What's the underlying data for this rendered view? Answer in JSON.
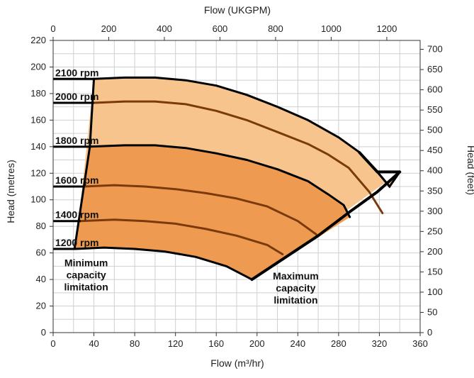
{
  "chart_data": {
    "type": "line",
    "x_bottom": {
      "label": "Flow (m³/hr)",
      "lim": [
        0,
        360
      ],
      "ticks": [
        0,
        40,
        80,
        120,
        160,
        200,
        240,
        280,
        320,
        360
      ]
    },
    "x_top": {
      "label": "Flow (UKGPM)",
      "lim": [
        0,
        1320
      ],
      "ticks": [
        0,
        200,
        400,
        600,
        800,
        1000,
        1200
      ]
    },
    "y_left": {
      "label": "Head (metres)",
      "lim": [
        0,
        220
      ],
      "ticks": [
        0,
        20,
        40,
        60,
        80,
        100,
        120,
        140,
        160,
        180,
        200,
        220
      ]
    },
    "y_right": {
      "label": "Head (feet)",
      "lim": [
        0,
        722
      ],
      "ticks": [
        0,
        50,
        100,
        150,
        200,
        250,
        300,
        350,
        400,
        450,
        500,
        550,
        600,
        650,
        700
      ]
    },
    "grid": true,
    "colors": {
      "light_region": "#f7c48e",
      "dark_region": "#ee9b51",
      "inner_curve": "#7a3a0c",
      "boundary": "#000000"
    },
    "series": [
      {
        "name": "2100 rpm",
        "x": [
          40,
          70,
          100,
          130,
          160,
          190,
          220,
          250,
          280,
          300,
          318,
          330,
          340
        ],
        "y": [
          191,
          192,
          192,
          190,
          186,
          179,
          170,
          160,
          147,
          136,
          121,
          110,
          121
        ]
      },
      {
        "name": "2000 rpm",
        "x": [
          40,
          70,
          100,
          130,
          160,
          190,
          220,
          250,
          270,
          290,
          310,
          323
        ],
        "y": [
          173,
          174,
          174,
          172,
          167,
          160,
          151,
          142,
          134,
          124,
          106,
          90
        ]
      },
      {
        "name": "1800 rpm",
        "x": [
          36,
          70,
          100,
          130,
          160,
          190,
          220,
          250,
          270,
          285,
          291
        ],
        "y": [
          140,
          141,
          141,
          139,
          135,
          130,
          123,
          114,
          104,
          96,
          87
        ]
      },
      {
        "name": "1600 rpm",
        "x": [
          30,
          60,
          90,
          120,
          150,
          180,
          210,
          240,
          258
        ],
        "y": [
          110,
          111,
          110,
          108,
          105,
          101,
          95,
          84,
          74
        ]
      },
      {
        "name": "1400 rpm",
        "x": [
          27,
          60,
          90,
          120,
          150,
          180,
          210,
          225
        ],
        "y": [
          84,
          85,
          84,
          82,
          78,
          73,
          66,
          59
        ]
      },
      {
        "name": "1200 rpm",
        "x": [
          22,
          50,
          80,
          110,
          140,
          170,
          195
        ],
        "y": [
          63,
          64,
          63,
          61,
          57,
          50,
          40
        ]
      }
    ],
    "annotations": [
      {
        "lines": [
          "Minimum",
          "capacity",
          "limitation"
        ]
      },
      {
        "lines": [
          "Maximum",
          "capacity",
          "limitation"
        ]
      }
    ]
  }
}
